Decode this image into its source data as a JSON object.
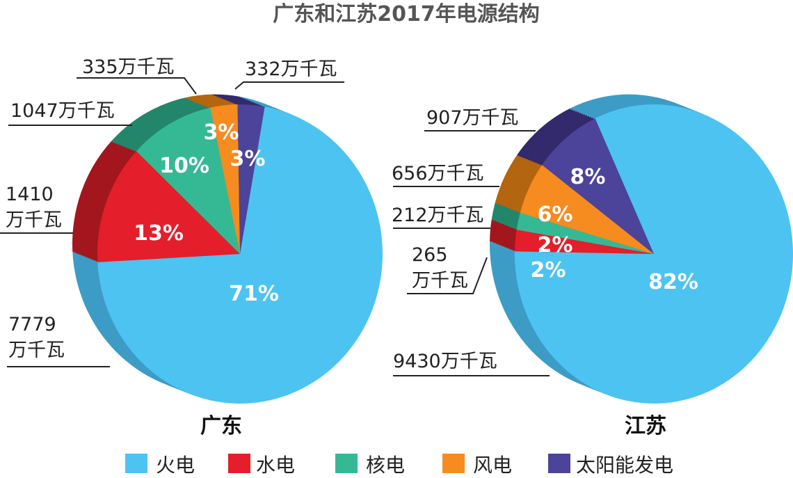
{
  "chart_data": [
    {
      "type": "pie",
      "title": "广东和江苏2017年电源结构",
      "name": "广东",
      "categories": [
        "火电",
        "水电",
        "核电",
        "风电",
        "太阳能发电"
      ],
      "values": [
        7779,
        1410,
        1047,
        335,
        332
      ],
      "unit": "万千瓦",
      "percent_labels": [
        "71%",
        "13%",
        "10%",
        "3%",
        "3%"
      ],
      "value_labels": [
        [
          "7779",
          "万千瓦"
        ],
        [
          "1410",
          "万千瓦"
        ],
        [
          "1047万千瓦"
        ],
        [
          "335万千瓦"
        ],
        [
          "332万千瓦"
        ]
      ]
    },
    {
      "type": "pie",
      "name": "江苏",
      "categories": [
        "火电",
        "水电",
        "核电",
        "风电",
        "太阳能发电"
      ],
      "values": [
        9430,
        265,
        212,
        656,
        907
      ],
      "unit": "万千瓦",
      "percent_labels": [
        "82%",
        "2%",
        "2%",
        "6%",
        "8%"
      ],
      "value_labels": [
        [
          "9430万千瓦"
        ],
        [
          "265",
          "万千瓦"
        ],
        [
          "212万千瓦"
        ],
        [
          "656万千瓦"
        ],
        [
          "907万千瓦"
        ]
      ]
    }
  ],
  "legend": {
    "placement": "bottom",
    "items": [
      "火电",
      "水电",
      "核电",
      "风电",
      "太阳能发电"
    ]
  },
  "colors": [
    "#4dc3f1",
    "#e41e2b",
    "#35b995",
    "#f68b1f",
    "#4c439a"
  ],
  "dark_colors": [
    "#3d9cc6",
    "#a3161d",
    "#23866a",
    "#b4650f",
    "#322a6c"
  ]
}
